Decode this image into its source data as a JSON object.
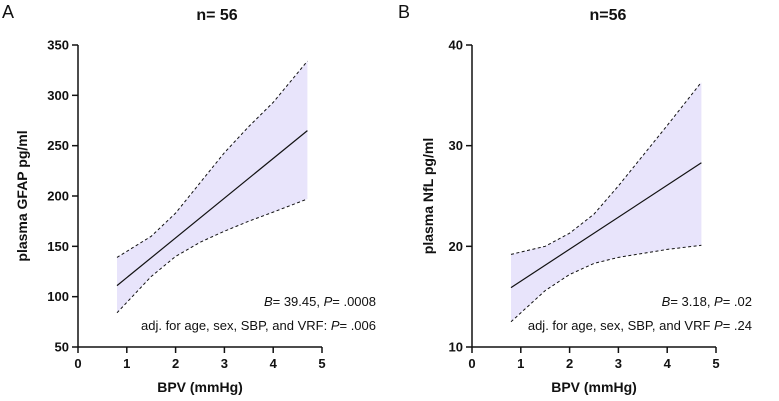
{
  "chart_data": [
    {
      "type": "line",
      "panel_label": "A",
      "title": "n= 56",
      "xlabel": "BPV (mmHg)",
      "ylabel": "plasma GFAP pg/ml",
      "xlim": [
        0,
        5
      ],
      "ylim": [
        50,
        350
      ],
      "x_ticks": [
        0,
        1,
        2,
        3,
        4,
        5
      ],
      "y_ticks": [
        50,
        100,
        150,
        200,
        250,
        300,
        350
      ],
      "grid": false,
      "fit_color": "#111111",
      "band_color": "#e8e4fb",
      "series": [
        {
          "name": "fit",
          "x": [
            0.8,
            4.7
          ],
          "y": [
            111,
            265
          ]
        },
        {
          "name": "upper 95% CI",
          "x": [
            0.8,
            1.5,
            2.0,
            2.5,
            3.0,
            3.5,
            4.0,
            4.7
          ],
          "y": [
            139,
            160,
            183,
            213,
            243,
            269,
            293,
            334
          ]
        },
        {
          "name": "lower 95% CI",
          "x": [
            0.8,
            1.5,
            2.0,
            2.5,
            3.0,
            3.5,
            4.0,
            4.7
          ],
          "y": [
            84,
            120,
            140,
            154,
            165,
            175,
            184,
            197
          ]
        }
      ],
      "annotations": [
        {
          "parts": [
            {
              "text": "B",
              "italic": true
            },
            {
              "text": "= 39.45, "
            },
            {
              "text": "P",
              "italic": true
            },
            {
              "text": "= .0008"
            }
          ]
        },
        {
          "parts": [
            {
              "text": "adj. for age, sex, SBP, and VRF: "
            },
            {
              "text": "P",
              "italic": true
            },
            {
              "text": "= .006"
            }
          ]
        }
      ]
    },
    {
      "type": "line",
      "panel_label": "B",
      "title": "n=56",
      "xlabel": "BPV (mmHg)",
      "ylabel": "plasma NfL pg/ml",
      "xlim": [
        0,
        5
      ],
      "ylim": [
        10,
        40
      ],
      "x_ticks": [
        0,
        1,
        2,
        3,
        4,
        5
      ],
      "y_ticks": [
        10,
        20,
        30,
        40
      ],
      "grid": false,
      "fit_color": "#111111",
      "band_color": "#e8e4fb",
      "series": [
        {
          "name": "fit",
          "x": [
            0.8,
            4.7
          ],
          "y": [
            15.9,
            28.3
          ]
        },
        {
          "name": "upper 95% CI",
          "x": [
            0.8,
            1.5,
            2.0,
            2.5,
            3.0,
            3.5,
            4.0,
            4.7
          ],
          "y": [
            19.2,
            20.0,
            21.3,
            23.2,
            26.0,
            29.0,
            32.0,
            36.3
          ]
        },
        {
          "name": "lower 95% CI",
          "x": [
            0.8,
            1.5,
            2.0,
            2.5,
            3.0,
            3.5,
            4.0,
            4.7
          ],
          "y": [
            12.5,
            15.6,
            17.2,
            18.3,
            18.9,
            19.3,
            19.7,
            20.1
          ]
        }
      ],
      "annotations": [
        {
          "parts": [
            {
              "text": "B",
              "italic": true
            },
            {
              "text": "= 3.18, "
            },
            {
              "text": "P",
              "italic": true
            },
            {
              "text": "= .02"
            }
          ]
        },
        {
          "parts": [
            {
              "text": "adj. for age, sex, SBP, and VRF "
            },
            {
              "text": "P",
              "italic": true
            },
            {
              "text": "= .24"
            }
          ]
        }
      ]
    }
  ]
}
